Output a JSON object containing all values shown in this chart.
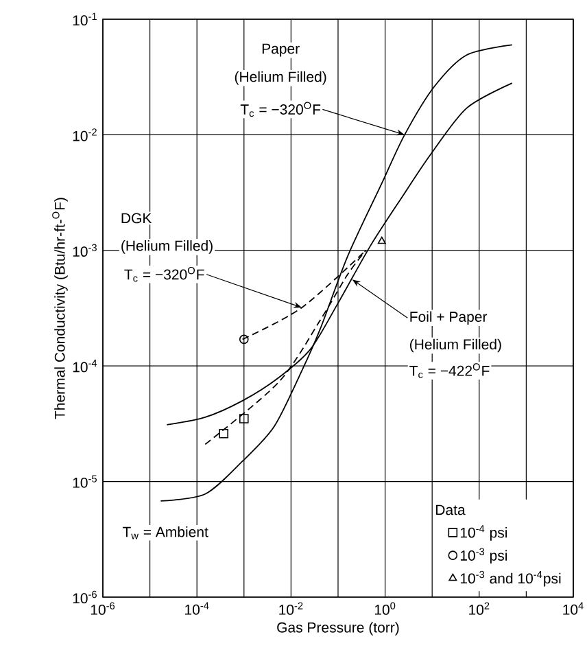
{
  "chart_data": {
    "type": "line",
    "xlabel": "Gas Pressure (torr)",
    "ylabel": "Thermal Conductivity (Btu/hr-ft-$^{O}$F)",
    "legend_title": "Data",
    "log": "xy",
    "grid": true,
    "legend": "bottom right",
    "xlim": [
      1e-06,
      10000.0
    ],
    "ylim": [
      1e-06,
      0.1
    ],
    "xticks": [
      {
        "value": 1e-06,
        "label": "10$^{-6}$"
      },
      {
        "value": 1e-05,
        "label": null
      },
      {
        "value": 0.0001,
        "label": "10$^{-4}$"
      },
      {
        "value": 0.001,
        "label": null
      },
      {
        "value": 0.01,
        "label": "10$^{-2}$"
      },
      {
        "value": 0.1,
        "label": null
      },
      {
        "value": 1,
        "label": "10$^{0}$"
      },
      {
        "value": 10,
        "label": null
      },
      {
        "value": 100,
        "label": "10$^{2}$"
      },
      {
        "value": 1000,
        "label": null
      },
      {
        "value": 10000,
        "label": "10$^{4}$"
      }
    ],
    "yticks": [
      {
        "value": 1e-06,
        "label": "10$^{-6}$"
      },
      {
        "value": 1e-05,
        "label": "10$^{-5}$"
      },
      {
        "value": 0.0001,
        "label": "10$^{-4}$"
      },
      {
        "value": 0.001,
        "label": "10$^{-3}$"
      },
      {
        "value": 0.01,
        "label": "10$^{-2}$"
      },
      {
        "value": 0.1,
        "label": "10$^{-1}$"
      }
    ],
    "series": [
      {
        "color": "#000000",
        "line_style": "solid",
        "x": [
          1.7e-05,
          0.00015,
          0.00093,
          0.0044,
          0.017,
          0.042,
          0.16,
          0.85,
          2.6,
          11,
          54,
          500
        ],
        "values": [
          6.8e-06,
          7.8e-06,
          1.5e-05,
          3e-05,
          9.1e-05,
          0.00021,
          0.00089,
          0.0038,
          0.01,
          0.026,
          0.049,
          0.06
        ]
      },
      {
        "color": "#000000",
        "line_style": "solid",
        "x": [
          2.3e-05,
          0.00015,
          0.00093,
          0.0054,
          0.026,
          0.1,
          0.49,
          2.3,
          8.9,
          54,
          500
        ],
        "values": [
          3.1e-05,
          3.6e-05,
          5e-05,
          7.9e-05,
          0.00014,
          0.00035,
          0.0011,
          0.0029,
          0.0066,
          0.017,
          0.028
        ]
      },
      {
        "color": "#000000",
        "line_style": "dashed",
        "x": [
          0.00093,
          0.017,
          0.39
        ],
        "values": [
          0.00017,
          0.00032,
          0.001
        ]
      },
      {
        "color": "#000000",
        "line_style": "dashed",
        "x": [
          0.00015,
          0.0054,
          0.042,
          0.16,
          0.39
        ],
        "values": [
          2.1e-05,
          7.2e-05,
          0.00025,
          0.00062,
          0.001
        ]
      },
      {
        "type": "scatter",
        "name": "10$^{-4}$ psi",
        "color": "#000000",
        "marker": "square",
        "x": [
          0.00037,
          0.001
        ],
        "values": [
          2.6e-05,
          3.5e-05
        ]
      },
      {
        "type": "scatter",
        "name": "10$^{-3}$ psi",
        "color": "#000000",
        "marker": "circle",
        "x": [
          0.001
        ],
        "values": [
          0.00017
        ]
      },
      {
        "type": "scatter",
        "name": "10$^{-3}$ and 10$^{-4}$psi",
        "color": "#000000",
        "marker": "triangle",
        "x": [
          0.85
        ],
        "values": [
          0.0012
        ]
      }
    ],
    "annotations": [
      "Paper",
      "(Helium Filled)",
      {
        "text": "T$_{c}$ = −320$^{O}$F",
        "x": 2.6,
        "y": 0.01
      },
      "DGK",
      "(Helium Filled)",
      {
        "text": "T$_{c}$ = −320$^{O}$F",
        "x": 0.017,
        "y": 0.00032
      },
      {
        "text": "Foil + Paper",
        "x": 0.2,
        "y": 0.00056
      },
      "(Helium Filled)",
      "T$_{c}$ = −422$^{O}$F",
      "T$_{w}$ = Ambient"
    ]
  }
}
